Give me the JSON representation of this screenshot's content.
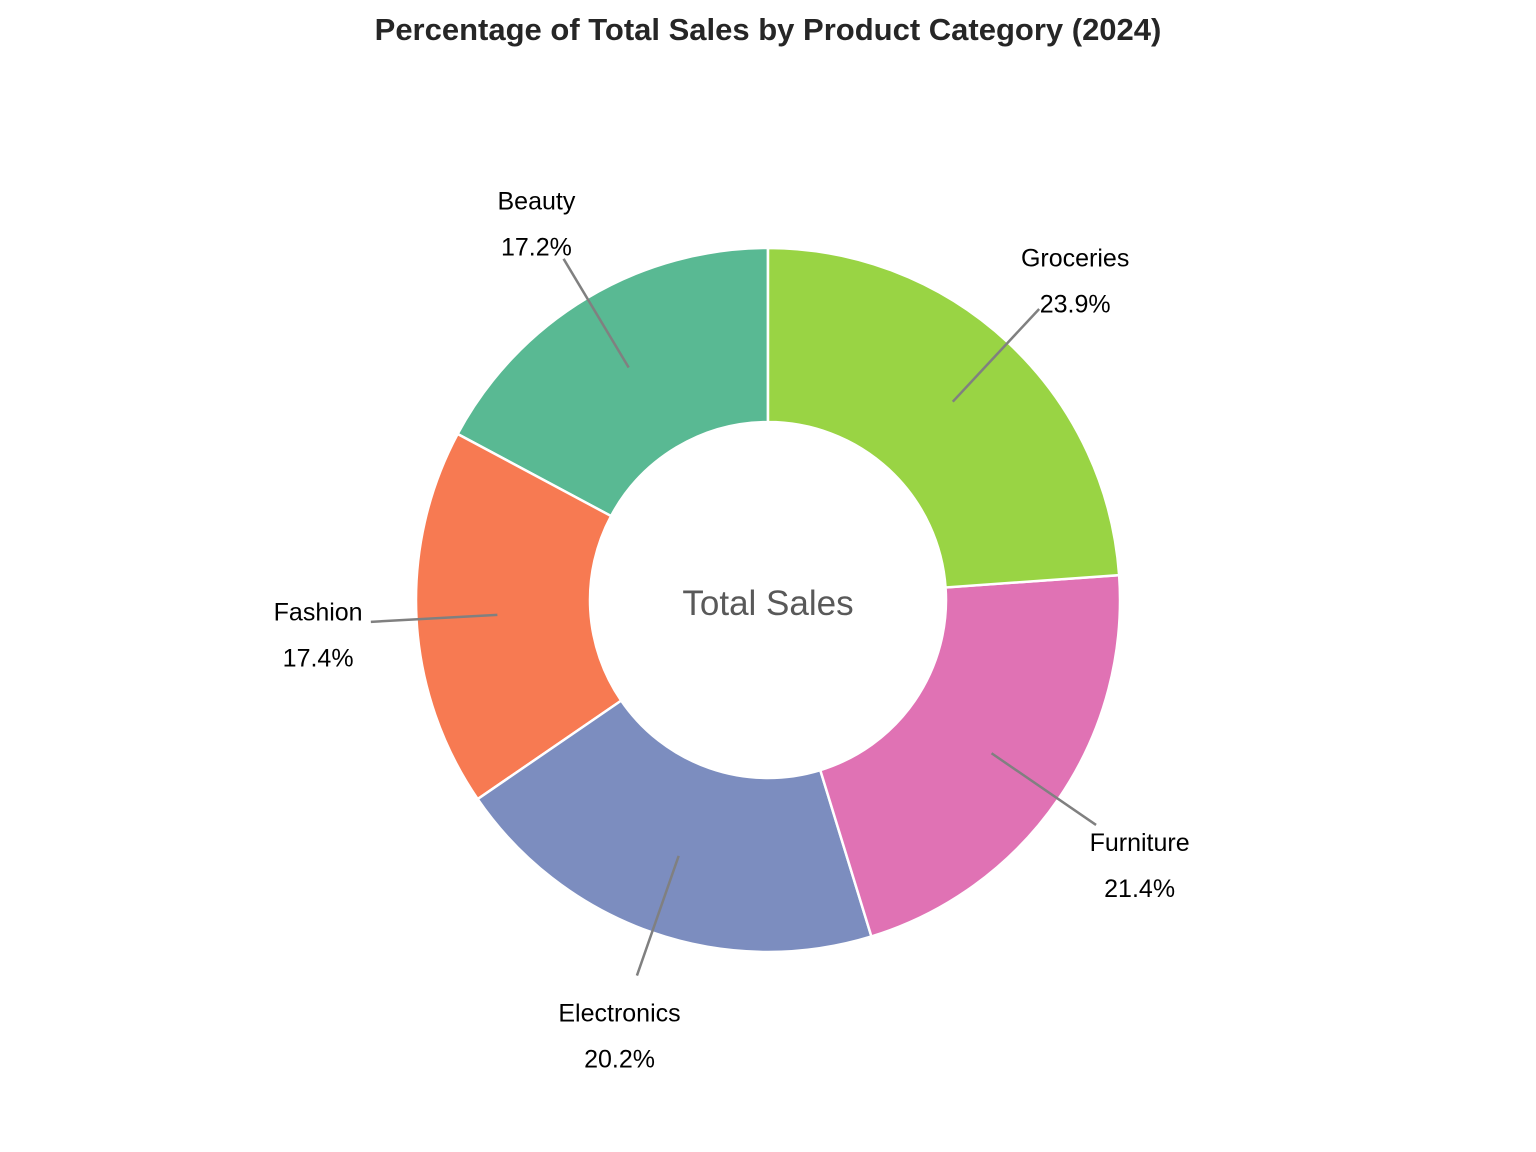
{
  "chart_data": {
    "type": "pie",
    "style": "donut",
    "title": "Percentage of Total Sales by Product Category (2024)",
    "center_label": "Total Sales",
    "start_angle_deg": 90,
    "direction": "counterclockwise",
    "slices": [
      {
        "label": "Beauty",
        "value": 17.2,
        "value_label": "17.2%",
        "color": "#59b993"
      },
      {
        "label": "Fashion",
        "value": 17.4,
        "value_label": "17.4%",
        "color": "#f77a52"
      },
      {
        "label": "Electronics",
        "value": 20.2,
        "value_label": "20.2%",
        "color": "#7c8dbf"
      },
      {
        "label": "Furniture",
        "value": 21.4,
        "value_label": "21.4%",
        "color": "#e072b4"
      },
      {
        "label": "Groceries",
        "value": 23.9,
        "value_label": "23.9%",
        "color": "#99d444"
      }
    ]
  }
}
